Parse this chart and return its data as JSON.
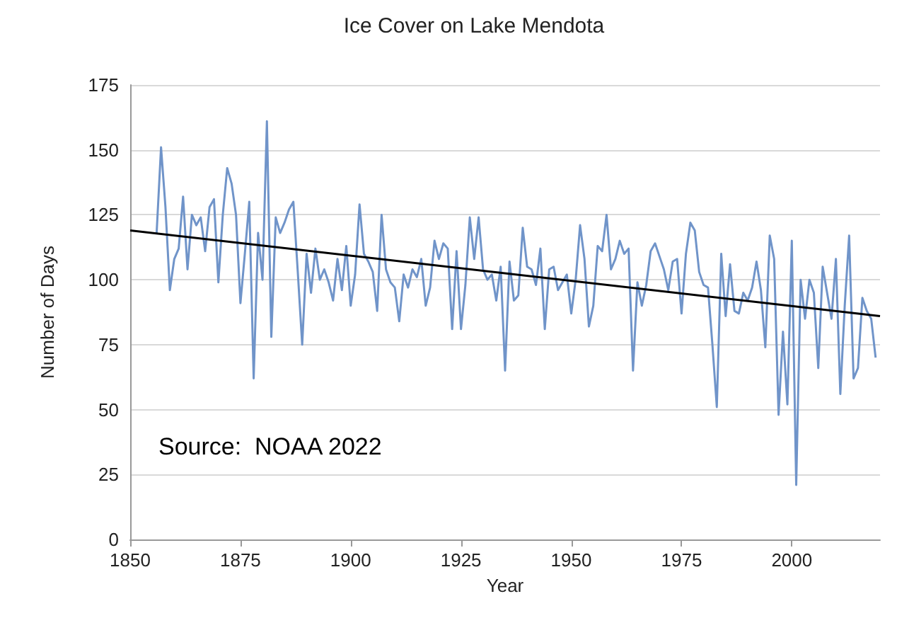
{
  "chart_data": {
    "type": "line",
    "title": "Ice Cover on Lake Mendota",
    "xlabel": "Year",
    "ylabel": "Number of Days",
    "annotations": [
      "Source:  NOAA 2022"
    ],
    "xlim": [
      1850,
      2020
    ],
    "xticks": [
      1850,
      1875,
      1900,
      1925,
      1950,
      1975,
      2000
    ],
    "ylim": [
      0,
      175
    ],
    "yticks": [
      0,
      25,
      50,
      75,
      100,
      125,
      150,
      175
    ],
    "grid": "y",
    "marker": "none",
    "line_style": "solid",
    "series": [
      {
        "color": "#7094c9",
        "x": [
          1856,
          1857,
          1858,
          1859,
          1860,
          1861,
          1862,
          1863,
          1864,
          1865,
          1866,
          1867,
          1868,
          1869,
          1870,
          1871,
          1872,
          1873,
          1874,
          1875,
          1876,
          1877,
          1878,
          1879,
          1880,
          1881,
          1882,
          1883,
          1884,
          1885,
          1886,
          1887,
          1888,
          1889,
          1890,
          1891,
          1892,
          1893,
          1894,
          1895,
          1896,
          1897,
          1898,
          1899,
          1900,
          1901,
          1902,
          1903,
          1904,
          1905,
          1906,
          1907,
          1908,
          1909,
          1910,
          1911,
          1912,
          1913,
          1914,
          1915,
          1916,
          1917,
          1918,
          1919,
          1920,
          1921,
          1922,
          1923,
          1924,
          1925,
          1926,
          1927,
          1928,
          1929,
          1930,
          1931,
          1932,
          1933,
          1934,
          1935,
          1936,
          1937,
          1938,
          1939,
          1940,
          1941,
          1942,
          1943,
          1944,
          1945,
          1946,
          1947,
          1948,
          1949,
          1950,
          1951,
          1952,
          1953,
          1954,
          1955,
          1956,
          1957,
          1958,
          1959,
          1960,
          1961,
          1962,
          1963,
          1964,
          1965,
          1966,
          1967,
          1968,
          1969,
          1970,
          1971,
          1972,
          1973,
          1974,
          1975,
          1976,
          1977,
          1978,
          1979,
          1980,
          1981,
          1982,
          1983,
          1984,
          1985,
          1986,
          1987,
          1988,
          1989,
          1990,
          1991,
          1992,
          1993,
          1994,
          1995,
          1996,
          1997,
          1998,
          1999,
          2000,
          2001,
          2002,
          2003,
          2004,
          2005,
          2006,
          2007,
          2008,
          2009,
          2010,
          2011,
          2012,
          2013,
          2014,
          2015,
          2016,
          2017,
          2018,
          2019
        ],
        "values": [
          118,
          151,
          128,
          96,
          108,
          112,
          132,
          104,
          125,
          121,
          124,
          111,
          128,
          131,
          99,
          125,
          143,
          137,
          125,
          91,
          110,
          130,
          62,
          118,
          100,
          161,
          78,
          124,
          118,
          122,
          127,
          130,
          103,
          75,
          110,
          95,
          112,
          100,
          104,
          99,
          92,
          108,
          96,
          113,
          90,
          102,
          129,
          110,
          107,
          103,
          88,
          125,
          104,
          99,
          97,
          84,
          102,
          97,
          104,
          101,
          108,
          90,
          97,
          115,
          108,
          114,
          112,
          81,
          111,
          81,
          98,
          124,
          108,
          124,
          104,
          100,
          102,
          92,
          105,
          65,
          107,
          92,
          94,
          120,
          105,
          104,
          98,
          112,
          81,
          104,
          105,
          96,
          99,
          102,
          87,
          100,
          121,
          108,
          82,
          90,
          113,
          111,
          125,
          104,
          108,
          115,
          110,
          112,
          65,
          99,
          90,
          98,
          111,
          114,
          109,
          104,
          96,
          107,
          108,
          87,
          110,
          122,
          119,
          103,
          98,
          97,
          75,
          51,
          110,
          86,
          106,
          88,
          87,
          95,
          92,
          97,
          107,
          96,
          74,
          117,
          108,
          48,
          80,
          52,
          115,
          21,
          100,
          85,
          100,
          95,
          66,
          105,
          95,
          85,
          108,
          56,
          90,
          117,
          62,
          66,
          93,
          88,
          85,
          70
        ]
      },
      {
        "color": "#000000",
        "x": [
          1850,
          2020
        ],
        "values": [
          119,
          86
        ]
      }
    ]
  }
}
